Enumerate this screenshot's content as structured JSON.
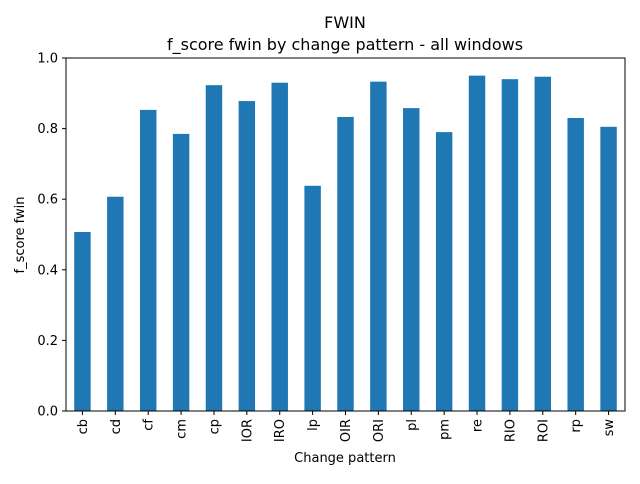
{
  "chart_data": {
    "type": "bar",
    "title": "FWIN",
    "subtitle": "f_score fwin by change pattern - all windows",
    "xlabel": "Change pattern",
    "ylabel": "f_score fwin",
    "ylim": [
      0.0,
      1.0
    ],
    "yticks": [
      "0.0",
      "0.2",
      "0.4",
      "0.6",
      "0.8",
      "1.0"
    ],
    "grid": false,
    "legend": "none",
    "bar_color": "#1f77b4",
    "categories": [
      "cb",
      "cd",
      "cf",
      "cm",
      "cp",
      "IOR",
      "IRO",
      "lp",
      "OIR",
      "ORI",
      "pl",
      "pm",
      "re",
      "RIO",
      "ROI",
      "rp",
      "sw"
    ],
    "values": [
      0.507,
      0.607,
      0.853,
      0.785,
      0.923,
      0.878,
      0.93,
      0.638,
      0.833,
      0.933,
      0.858,
      0.79,
      0.95,
      0.94,
      0.947,
      0.83,
      0.805
    ]
  }
}
